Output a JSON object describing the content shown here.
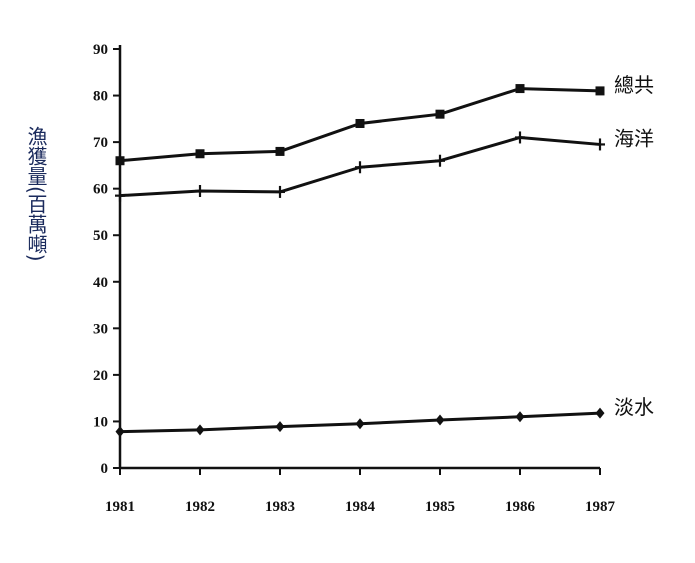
{
  "chart_data": {
    "type": "line",
    "x": [
      "1981",
      "1982",
      "1983",
      "1984",
      "1985",
      "1986",
      "1987"
    ],
    "series": [
      {
        "name": "總共",
        "marker": "square",
        "values": [
          66,
          67.5,
          68,
          74,
          76,
          81.5,
          81
        ]
      },
      {
        "name": "海洋",
        "marker": "plus",
        "values": [
          58.5,
          59.5,
          59.3,
          64.6,
          66,
          71,
          69.5
        ]
      },
      {
        "name": "淡水",
        "marker": "diamond",
        "values": [
          7.8,
          8.2,
          8.9,
          9.5,
          10.3,
          11,
          11.8
        ]
      }
    ],
    "ylabel": "漁獲量(百萬噸)",
    "xlabel": "",
    "title": "",
    "ylim": [
      0,
      90
    ],
    "yticks": [
      "0",
      "10",
      "20",
      "30",
      "40",
      "50",
      "60",
      "70",
      "80",
      "90"
    ],
    "grid": false,
    "legend": "inline-right",
    "line_color": "#111111",
    "ylabel_color": "#1a2a5c"
  }
}
